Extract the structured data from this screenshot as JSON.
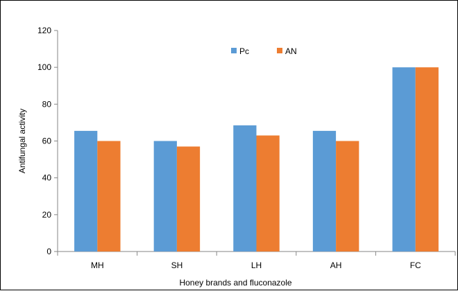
{
  "chart_data": {
    "type": "bar",
    "categories": [
      "MH",
      "SH",
      "LH",
      "AH",
      "FC"
    ],
    "series": [
      {
        "name": "Pc",
        "color": "#5B9BD5",
        "values": [
          65.5,
          60,
          68.5,
          65.5,
          100
        ]
      },
      {
        "name": "AN",
        "color": "#ED7D31",
        "values": [
          60,
          57,
          63,
          60,
          100
        ]
      }
    ],
    "title": "",
    "xlabel": "Honey brands and fluconazole",
    "ylabel": "Antifungal activity",
    "ylim": [
      0,
      120
    ],
    "yticks": [
      0,
      20,
      40,
      60,
      80,
      100,
      120
    ],
    "grid": false,
    "legend": "top-center"
  }
}
